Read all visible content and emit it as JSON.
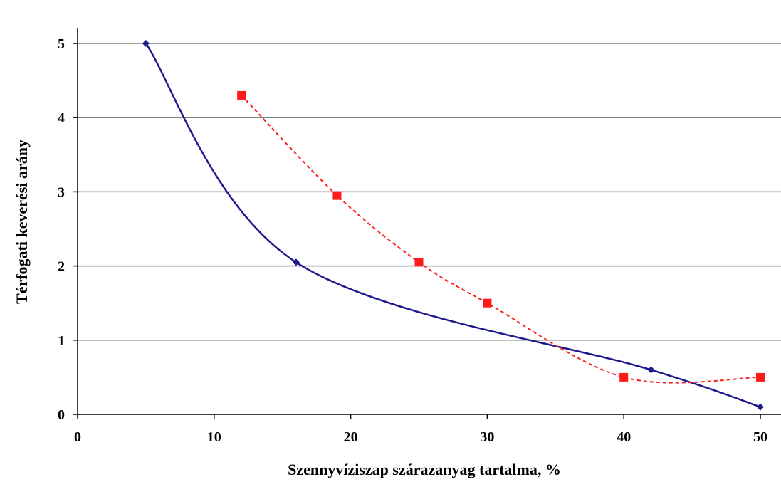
{
  "chart_data": {
    "type": "line",
    "title": "",
    "xlabel": "Szennyvíziszap szárazanyag tartalma, %",
    "ylabel": "Térfogati keverési arány",
    "xlim": [
      0,
      50
    ],
    "ylim": [
      0,
      5
    ],
    "xticks": [
      0,
      10,
      20,
      30,
      40,
      50
    ],
    "yticks": [
      0,
      1,
      2,
      3,
      4,
      5
    ],
    "grid": "horizontal",
    "legend": "none",
    "series": [
      {
        "color": "#1f1a8c",
        "line_style": "solid",
        "marker": "diamond",
        "smooth": true,
        "x": [
          5,
          16,
          42,
          50
        ],
        "y": [
          5.0,
          2.05,
          0.6,
          0.1
        ]
      },
      {
        "color": "#ff1a1a",
        "line_style": "dashed",
        "marker": "square",
        "smooth": true,
        "x": [
          12,
          19,
          25,
          30,
          40,
          50
        ],
        "y": [
          4.3,
          2.95,
          2.05,
          1.5,
          0.5,
          0.5
        ]
      }
    ]
  }
}
